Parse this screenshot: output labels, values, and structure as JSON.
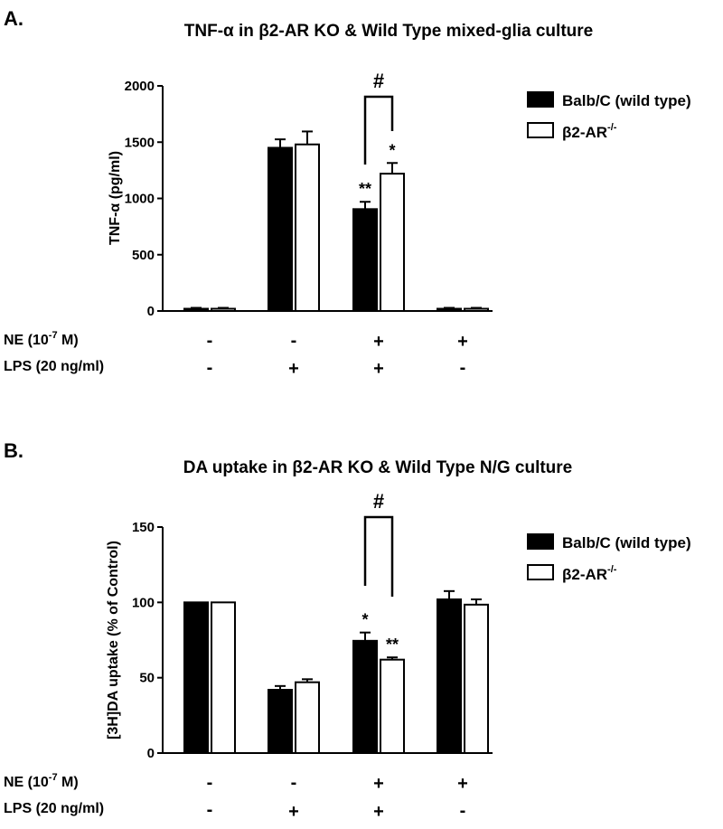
{
  "condition_rows": [
    {
      "label_pre": "NE (10",
      "label_sup": "-7",
      "label_post": " M)",
      "values": [
        "-",
        "-",
        "+",
        "+"
      ]
    },
    {
      "label_pre": "LPS (20 ng/ml)",
      "label_sup": "",
      "label_post": "",
      "values": [
        "-",
        "+",
        "+",
        "-"
      ]
    }
  ],
  "chart_data": [
    {
      "type": "bar",
      "panel_letter": "A.",
      "title_pre": "TNF-",
      "title_alpha": "α",
      "title_mid": " in ",
      "title_beta": "β",
      "title_post": "2-AR KO & Wild Type mixed-glia culture",
      "ylabel_pre": "TNF-",
      "ylabel_alpha": "α",
      "ylabel_post": " (pg/ml)",
      "ylim": [
        0,
        2000
      ],
      "yticks": [
        0,
        500,
        1000,
        1500,
        2000
      ],
      "grid": false,
      "legend_position": "top-right",
      "categories": [
        "NE - / LPS -",
        "NE - / LPS +",
        "NE + / LPS +",
        "NE + / LPS -"
      ],
      "series": [
        {
          "name": "Balb/C (wild type)",
          "fill": "#000000",
          "values": [
            20,
            1450,
            905,
            20
          ],
          "errors": [
            8,
            75,
            65,
            8
          ],
          "annotations": [
            "",
            "",
            "**",
            ""
          ]
        },
        {
          "name_pre": "β2-AR",
          "name_sup": "-/-",
          "fill": "#ffffff",
          "values": [
            20,
            1480,
            1220,
            20
          ],
          "errors": [
            8,
            115,
            95,
            8
          ],
          "annotations": [
            "",
            "",
            "*",
            ""
          ]
        }
      ],
      "bracket": {
        "label": "#",
        "category": 2
      }
    },
    {
      "type": "bar",
      "panel_letter": "B.",
      "title_pre": "DA uptake in ",
      "title_beta": "β",
      "title_post": "2-AR KO & Wild Type N/G culture",
      "ylabel": "[3H]DA uptake (% of Control)",
      "ylim": [
        0,
        150
      ],
      "yticks": [
        0,
        50,
        100,
        150
      ],
      "grid": false,
      "legend_position": "top-right",
      "categories": [
        "NE - / LPS -",
        "NE - / LPS +",
        "NE + / LPS +",
        "NE + / LPS -"
      ],
      "series": [
        {
          "name": "Balb/C (wild type)",
          "fill": "#000000",
          "values": [
            100,
            42,
            74.5,
            102
          ],
          "errors": [
            0,
            2.5,
            5.5,
            5.5
          ],
          "annotations": [
            "",
            "",
            "*",
            ""
          ]
        },
        {
          "name_pre": "β2-AR",
          "name_sup": "-/-",
          "fill": "#ffffff",
          "values": [
            100,
            47,
            62,
            98.5
          ],
          "errors": [
            0,
            2,
            1.5,
            3.5
          ],
          "annotations": [
            "",
            "",
            "**",
            ""
          ]
        }
      ],
      "bracket": {
        "label": "#",
        "category": 2
      }
    }
  ]
}
